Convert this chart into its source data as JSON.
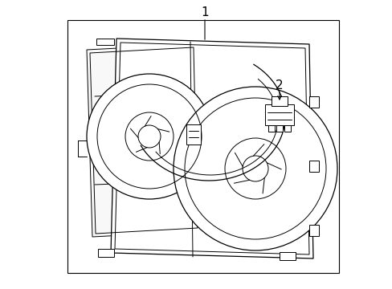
{
  "background_color": "#ffffff",
  "line_color": "#000000",
  "label_color": "#000000",
  "fig_width": 4.89,
  "fig_height": 3.6,
  "dpi": 100,
  "label1_text": "1",
  "label2_text": "2"
}
